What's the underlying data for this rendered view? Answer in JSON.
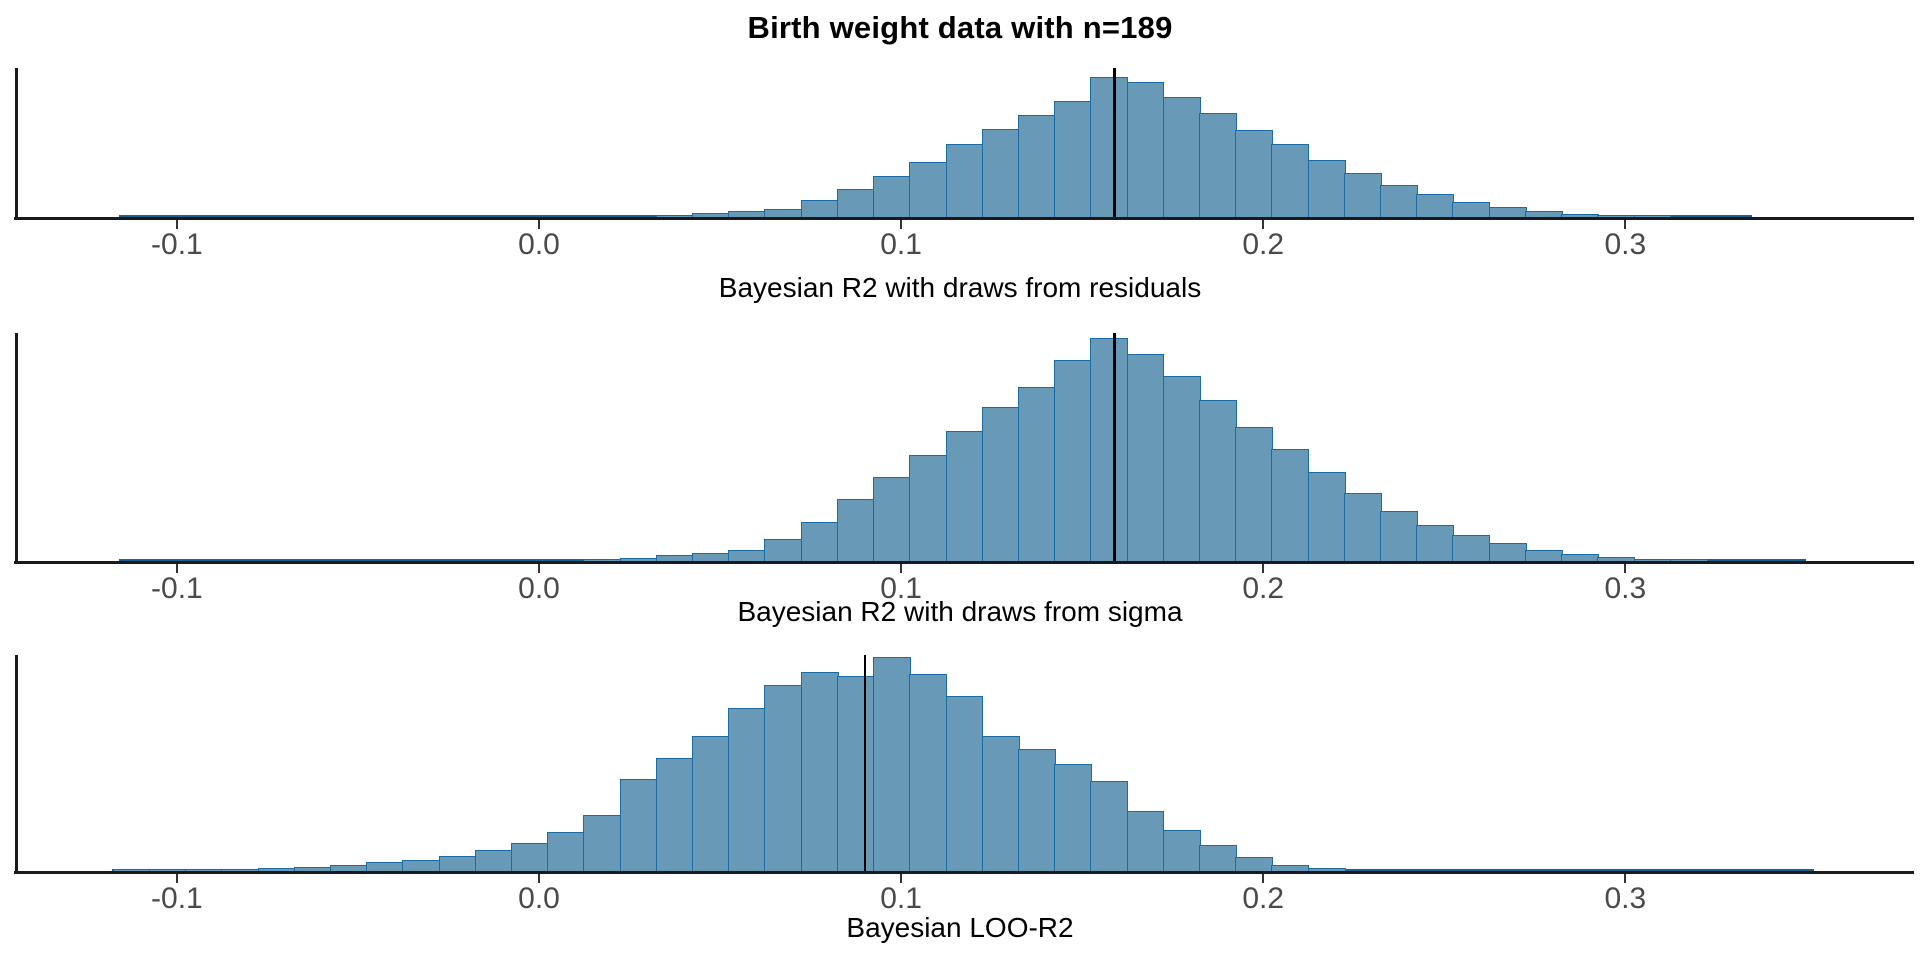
{
  "title": "Birth weight data with n=189",
  "colors": {
    "bar_fill": "#6899b6",
    "bar_border": "#1b6ba5",
    "median_line": "#000000",
    "axis_line": "#1a1a1a",
    "tick_label": "#4a4a4a",
    "label_text": "#000000",
    "tail_trace": "#1d5f8d"
  },
  "chart_data": {
    "type": "bar",
    "subtype": "histogram-grid",
    "title": "Birth weight data with n=189",
    "grid": false,
    "legend": "none",
    "x_range": [
      -0.144,
      0.379
    ],
    "x_ticks": [
      -0.1,
      0.0,
      0.1,
      0.2,
      0.3
    ],
    "x_tick_labels": [
      "-0.1",
      "0.0",
      "0.1",
      "0.2",
      "0.3"
    ],
    "bin_width": 0.01,
    "height_unit": "relative frequency, normalized so each panel's tallest bin = 1.0",
    "panels": [
      {
        "xlabel": "Bayesian R2 with draws from residuals",
        "median_line_x": 0.159,
        "first_bin_left_edge": 0.0325,
        "heights": [
          0.015,
          0.025,
          0.04,
          0.06,
          0.12,
          0.2,
          0.29,
          0.39,
          0.52,
          0.63,
          0.73,
          0.83,
          1.0,
          0.965,
          0.86,
          0.74,
          0.62,
          0.52,
          0.41,
          0.315,
          0.23,
          0.165,
          0.11,
          0.07,
          0.042,
          0.022,
          0.012,
          0.006
        ],
        "tail_trace_range": [
          -0.116,
          0.335
        ]
      },
      {
        "xlabel": "Bayesian R2 with draws from sigma",
        "median_line_x": 0.159,
        "first_bin_left_edge": 0.0125,
        "heights": [
          0.008,
          0.012,
          0.025,
          0.035,
          0.05,
          0.1,
          0.175,
          0.28,
          0.375,
          0.475,
          0.585,
          0.69,
          0.78,
          0.9,
          1.0,
          0.93,
          0.83,
          0.72,
          0.6,
          0.5,
          0.4,
          0.305,
          0.225,
          0.16,
          0.115,
          0.08,
          0.05,
          0.03,
          0.018,
          0.01,
          0.006
        ],
        "tail_trace_range": [
          -0.116,
          0.35
        ]
      },
      {
        "xlabel": "Bayesian LOO-R2",
        "median_line_x": 0.09,
        "first_bin_left_edge": -0.1175,
        "heights": [
          0.004,
          0.004,
          0.006,
          0.008,
          0.014,
          0.02,
          0.028,
          0.04,
          0.052,
          0.07,
          0.1,
          0.13,
          0.18,
          0.26,
          0.43,
          0.53,
          0.63,
          0.76,
          0.87,
          0.93,
          0.91,
          1.0,
          0.92,
          0.82,
          0.63,
          0.57,
          0.5,
          0.42,
          0.28,
          0.19,
          0.12,
          0.065,
          0.03,
          0.015
        ],
        "tail_trace_range": [
          -0.118,
          0.352
        ]
      }
    ]
  }
}
